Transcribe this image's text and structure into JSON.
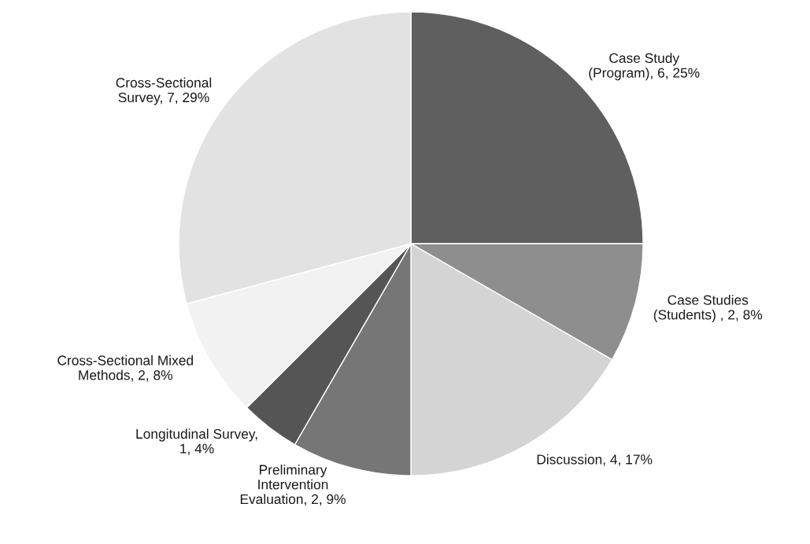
{
  "chart_data": {
    "type": "pie",
    "categories": [
      "Case Study\n(Program)",
      "Case Studies\n(Students)",
      "Discussion",
      "Preliminary\nIntervention\nEvaluation",
      "Longitudinal Survey",
      "Cross-Sectional Mixed\nMethods",
      "Cross-Sectional\nSurvey"
    ],
    "values": [
      6,
      2,
      4,
      2,
      1,
      2,
      7
    ],
    "value_labels": [
      ", 6, 25%",
      " , 2, 8%",
      ", 4, 17%",
      ", 2, 9%",
      ",\n1, 4%",
      ", 2, 8%",
      ", 7, 29%"
    ],
    "colors": [
      "#5f5f5f",
      "#8e8e8e",
      "#d4d4d4",
      "#767676",
      "#555555",
      "#f2f2f2",
      "#e2e2e2"
    ],
    "legend": false
  }
}
